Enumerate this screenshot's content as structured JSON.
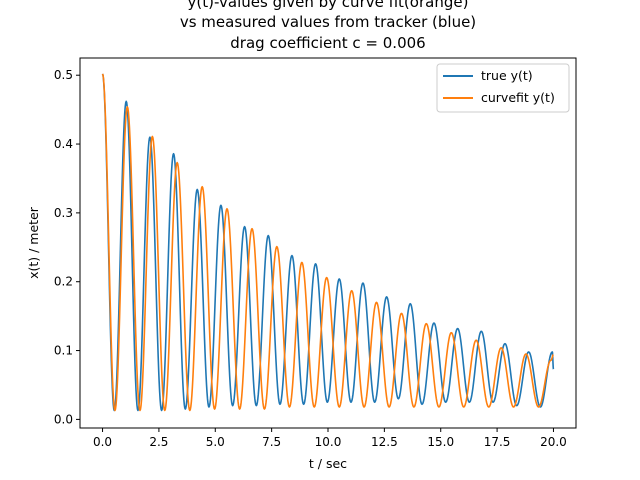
{
  "chart_data": {
    "type": "line",
    "title_lines": [
      "y(t)-values given by curve fit(orange)",
      "vs measured values from tracker (blue)",
      "drag coefficient c = 0.006"
    ],
    "xlabel": "t / sec",
    "ylabel": "x(t) / meter",
    "xlim": [
      -1.0,
      21.0
    ],
    "ylim": [
      -0.0125,
      0.525
    ],
    "x_ticks": [
      0.0,
      2.5,
      5.0,
      7.5,
      10.0,
      12.5,
      15.0,
      17.5,
      20.0
    ],
    "x_tick_labels": [
      "0.0",
      "2.5",
      "5.0",
      "7.5",
      "10.0",
      "12.5",
      "15.0",
      "17.5",
      "20.0"
    ],
    "y_ticks": [
      0.0,
      0.1,
      0.2,
      0.3,
      0.4,
      0.5
    ],
    "y_tick_labels": [
      "0.0",
      "0.1",
      "0.2",
      "0.3",
      "0.4",
      "0.5"
    ],
    "grid": false,
    "legend_position": "top-right",
    "series": [
      {
        "name": "true y(t)",
        "color": "#1f77b4",
        "period": 1.035,
        "points": [
          [
            0.0,
            0.502
          ],
          [
            0.52,
            0.013
          ],
          [
            1.05,
            0.462
          ],
          [
            1.57,
            0.013
          ],
          [
            2.1,
            0.41
          ],
          [
            2.62,
            0.013
          ],
          [
            3.15,
            0.386
          ],
          [
            3.67,
            0.015
          ],
          [
            4.2,
            0.334
          ],
          [
            4.72,
            0.018
          ],
          [
            5.25,
            0.311
          ],
          [
            5.77,
            0.02
          ],
          [
            6.3,
            0.28
          ],
          [
            6.82,
            0.02
          ],
          [
            7.35,
            0.267
          ],
          [
            7.87,
            0.022
          ],
          [
            8.4,
            0.238
          ],
          [
            8.92,
            0.022
          ],
          [
            9.45,
            0.226
          ],
          [
            9.97,
            0.025
          ],
          [
            10.5,
            0.204
          ],
          [
            11.02,
            0.025
          ],
          [
            11.55,
            0.198
          ],
          [
            12.07,
            0.025
          ],
          [
            12.6,
            0.178
          ],
          [
            13.12,
            0.03
          ],
          [
            13.65,
            0.168
          ],
          [
            14.17,
            0.022
          ],
          [
            14.7,
            0.14
          ],
          [
            15.22,
            0.025
          ],
          [
            15.75,
            0.132
          ],
          [
            16.27,
            0.025
          ],
          [
            16.8,
            0.128
          ],
          [
            17.32,
            0.025
          ],
          [
            17.85,
            0.11
          ],
          [
            18.37,
            0.02
          ],
          [
            18.9,
            0.098
          ],
          [
            19.42,
            0.018
          ],
          [
            19.95,
            0.098
          ],
          [
            20.0,
            0.073
          ]
        ]
      },
      {
        "name": "curvefit y(t)",
        "color": "#ff7f0e",
        "period": 1.105,
        "points": [
          [
            0.0,
            0.502
          ],
          [
            0.55,
            0.013
          ],
          [
            1.1,
            0.454
          ],
          [
            1.66,
            0.013
          ],
          [
            2.21,
            0.411
          ],
          [
            2.76,
            0.013
          ],
          [
            3.31,
            0.373
          ],
          [
            3.87,
            0.013
          ],
          [
            4.42,
            0.338
          ],
          [
            4.97,
            0.015
          ],
          [
            5.52,
            0.306
          ],
          [
            6.08,
            0.015
          ],
          [
            6.63,
            0.277
          ],
          [
            7.18,
            0.015
          ],
          [
            7.73,
            0.251
          ],
          [
            8.29,
            0.018
          ],
          [
            8.84,
            0.228
          ],
          [
            9.39,
            0.018
          ],
          [
            9.94,
            0.206
          ],
          [
            10.5,
            0.018
          ],
          [
            11.05,
            0.187
          ],
          [
            11.6,
            0.018
          ],
          [
            12.15,
            0.17
          ],
          [
            12.71,
            0.018
          ],
          [
            13.26,
            0.154
          ],
          [
            13.81,
            0.018
          ],
          [
            14.36,
            0.139
          ],
          [
            14.92,
            0.018
          ],
          [
            15.47,
            0.126
          ],
          [
            16.02,
            0.018
          ],
          [
            16.57,
            0.115
          ],
          [
            17.13,
            0.018
          ],
          [
            17.68,
            0.104
          ],
          [
            18.23,
            0.018
          ],
          [
            18.78,
            0.095
          ],
          [
            19.34,
            0.018
          ],
          [
            19.89,
            0.086
          ],
          [
            20.0,
            0.094
          ]
        ]
      }
    ]
  }
}
